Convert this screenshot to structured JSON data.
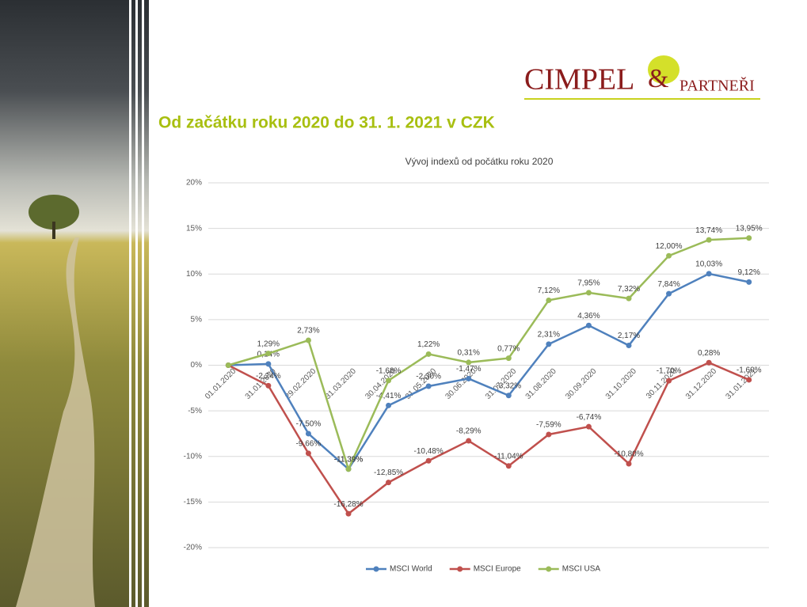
{
  "slide": {
    "logo": [
      "CIMPEL",
      "&",
      "PARTNEŘI"
    ],
    "heading": "Od začátku roku 2020 do 31. 1. 2021 v CZK"
  },
  "chart_data": {
    "type": "line",
    "title": "Vývoj indexů od počátku roku 2020",
    "categories": [
      "01.01.2020",
      "31.01.2020",
      "29.02.2020",
      "31.03.2020",
      "30.04.2020",
      "31.05.2020",
      "30.06.2020",
      "31.07.2020",
      "31.08.2020",
      "30.09.2020",
      "31.10.2020",
      "30.11.2020",
      "31.12.2020",
      "31.01.2021"
    ],
    "series": [
      {
        "name": "MSCI World",
        "color": "#4f81bd",
        "values": [
          0,
          0.14,
          -7.5,
          -11.39,
          -4.41,
          -2.3,
          -1.47,
          -3.32,
          2.31,
          4.36,
          2.17,
          7.84,
          10.03,
          9.12
        ],
        "value_labels": [
          null,
          "0,14%",
          "-7,50%",
          "-11,39%",
          "-4,41%",
          "-2,30%",
          "-1,47%",
          "-3,32%",
          "2,31%",
          "4,36%",
          "2,17%",
          "7,84%",
          "10,03%",
          "9,12%"
        ]
      },
      {
        "name": "MSCI Europe",
        "color": "#c0504d",
        "values": [
          0,
          -2.24,
          -9.66,
          -16.28,
          -12.85,
          -10.48,
          -8.29,
          -11.04,
          -7.59,
          -6.74,
          -10.8,
          -1.7,
          0.28,
          -1.6
        ],
        "value_labels": [
          null,
          "-2,24%",
          "-9,66%",
          "-16,28%",
          "-12,85%",
          "-10,48%",
          "-8,29%",
          "-11,04%",
          "-7,59%",
          "-6,74%",
          "-10,80%",
          "-1,70%",
          "0,28%",
          "-1,60%"
        ]
      },
      {
        "name": "MSCI USA",
        "color": "#9bbb59",
        "values": [
          0,
          1.29,
          2.73,
          -11.39,
          -1.68,
          1.22,
          0.31,
          0.77,
          7.12,
          7.95,
          7.32,
          12.0,
          13.74,
          13.95
        ],
        "value_labels": [
          null,
          "1,29%",
          "2,73%",
          "-11,39%",
          "-1,68%",
          "1,22%",
          "0,31%",
          "0,77%",
          "7,12%",
          "7,95%",
          "7,32%",
          "12,00%",
          "13,74%",
          "13,95%"
        ]
      }
    ],
    "ylim": [
      -20,
      20
    ],
    "yticks": [
      {
        "value": -20,
        "label": "-20%"
      },
      {
        "value": -15,
        "label": "-15%"
      },
      {
        "value": -10,
        "label": "-10%"
      },
      {
        "value": -5,
        "label": "-5%"
      },
      {
        "value": 0,
        "label": "0%"
      },
      {
        "value": 5,
        "label": "5%"
      },
      {
        "value": 10,
        "label": "10%"
      },
      {
        "value": 15,
        "label": "15%"
      },
      {
        "value": 20,
        "label": "20%"
      }
    ],
    "grid": true,
    "legend": "bottom"
  }
}
